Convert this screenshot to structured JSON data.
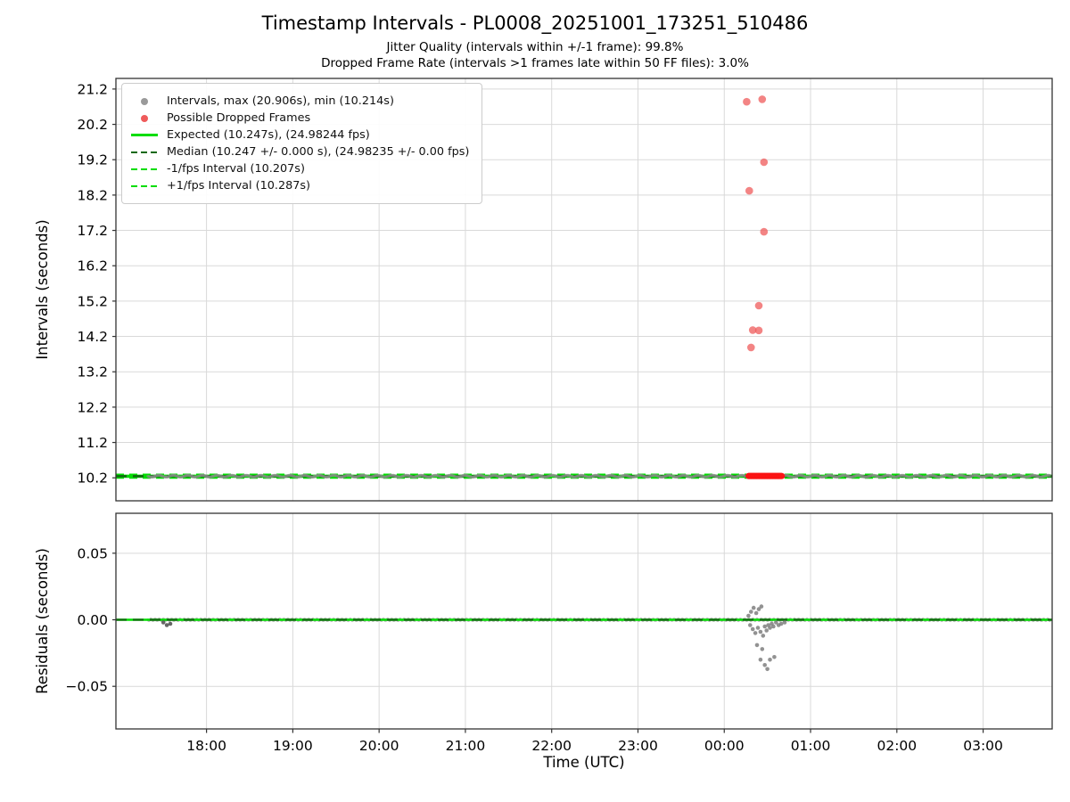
{
  "header": {
    "title": "Timestamp Intervals - PL0008_20251001_173251_510486",
    "subtitle_jitter": "Jitter Quality (intervals within +/-1 frame): 99.8%",
    "subtitle_dropped": "Dropped Frame Rate (intervals >1 frames late within 50 FF files): 3.0%"
  },
  "legend": {
    "items": [
      {
        "label": "Intervals, max (20.906s), min (10.214s)",
        "marker": "dot",
        "color": "#9a9a9a"
      },
      {
        "label": "Possible Dropped Frames",
        "marker": "dot",
        "color": "#ef5b5b"
      },
      {
        "label": "Expected (10.247s), (24.98244 fps)",
        "marker": "line-solid",
        "color": "#00dd00"
      },
      {
        "label": "Median (10.247 +/- 0.000 s), (24.98235 +/- 0.00 fps)",
        "marker": "line-dashed",
        "color": "#10680f"
      },
      {
        "label": "-1/fps Interval (10.207s)",
        "marker": "line-dashed",
        "color": "#00dd00"
      },
      {
        "label": "+1/fps Interval (10.287s)",
        "marker": "line-dashed",
        "color": "#00dd00"
      }
    ]
  },
  "chart_data": {
    "type": "scatter",
    "title": "Timestamp Intervals - PL0008_20251001_173251_510486",
    "x_label": "Time (UTC)",
    "x_tick_labels": [
      "18:00",
      "19:00",
      "20:00",
      "21:00",
      "22:00",
      "23:00",
      "00:00",
      "01:00",
      "02:00",
      "03:00"
    ],
    "x_tick_hours": [
      18,
      19,
      20,
      21,
      22,
      23,
      24,
      25,
      26,
      27
    ],
    "x_range_hours": [
      16.95,
      27.8
    ],
    "grid": true,
    "colors": {
      "expected": "#00dd00",
      "median": "#10680f",
      "fps_lines": "#00dd00",
      "dropped": "#ef5b5b",
      "dropped_cluster": "#fb1414",
      "points": "#8a8a8a",
      "grid": "#d9d9d9",
      "axis": "#333333"
    },
    "stats": {
      "jitter_quality_pct": 99.8,
      "dropped_frame_rate_pct": 3.0,
      "ff_files": 50
    },
    "top_plot": {
      "y_label": "Intervals (seconds)",
      "y_tick_values": [
        10.2,
        11.2,
        12.2,
        13.2,
        14.2,
        15.2,
        16.2,
        17.2,
        18.2,
        19.2,
        20.2,
        21.2
      ],
      "y_tick_labels": [
        "10.2",
        "11.2",
        "12.2",
        "13.2",
        "14.2",
        "15.2",
        "16.2",
        "17.2",
        "18.2",
        "19.2",
        "20.2",
        "21.2"
      ],
      "y_range": [
        9.55,
        21.5
      ],
      "expected_interval_s": 10.247,
      "expected_fps": 24.98244,
      "median_interval_s": 10.247,
      "median_fps": 24.98235,
      "minus_one_fps_interval_s": 10.207,
      "plus_one_fps_interval_s": 10.287,
      "max_interval_s": 20.906,
      "min_interval_s": 10.214,
      "baseline_series": {
        "x_start_hour": 17.32,
        "x_end_hour": 27.78,
        "value_s": 10.247,
        "interval_step_s": 10.247
      },
      "dropped_cluster": {
        "x_start_hour": 24.28,
        "x_end_hour": 24.67,
        "value_s": 10.25
      },
      "dropped_outliers": [
        [
          24.26,
          20.84
        ],
        [
          24.44,
          20.91
        ],
        [
          24.46,
          19.13
        ],
        [
          24.29,
          18.32
        ],
        [
          24.46,
          17.16
        ],
        [
          24.4,
          15.07
        ],
        [
          24.33,
          14.38
        ],
        [
          24.4,
          14.37
        ],
        [
          24.31,
          13.89
        ]
      ]
    },
    "bottom_plot": {
      "y_label": "Residuals (seconds)",
      "y_tick_values": [
        -0.05,
        0.0,
        0.05
      ],
      "y_tick_labels": [
        "−0.05",
        "0.00",
        "0.05"
      ],
      "y_range": [
        -0.082,
        0.08
      ],
      "zero_line_value": 0.0,
      "early_scatter": [
        [
          17.5,
          -0.002
        ],
        [
          17.54,
          -0.004
        ],
        [
          17.58,
          -0.003
        ]
      ],
      "residual_scatter": [
        [
          24.28,
          0.003
        ],
        [
          24.31,
          0.006
        ],
        [
          24.34,
          0.009
        ],
        [
          24.37,
          0.005
        ],
        [
          24.4,
          0.008
        ],
        [
          24.43,
          0.01
        ],
        [
          24.3,
          -0.004
        ],
        [
          24.33,
          -0.007
        ],
        [
          24.36,
          -0.01
        ],
        [
          24.39,
          -0.006
        ],
        [
          24.42,
          -0.009
        ],
        [
          24.45,
          -0.012
        ],
        [
          24.47,
          -0.005
        ],
        [
          24.49,
          -0.008
        ],
        [
          24.51,
          -0.004
        ],
        [
          24.53,
          -0.006
        ],
        [
          24.55,
          -0.003
        ],
        [
          24.57,
          -0.005
        ],
        [
          24.6,
          -0.002
        ],
        [
          24.63,
          -0.004
        ],
        [
          24.66,
          -0.003
        ],
        [
          24.7,
          -0.002
        ],
        [
          24.38,
          -0.019
        ],
        [
          24.44,
          -0.022
        ],
        [
          24.42,
          -0.03
        ],
        [
          24.47,
          -0.034
        ],
        [
          24.53,
          -0.03
        ],
        [
          24.58,
          -0.028
        ],
        [
          24.5,
          -0.037
        ]
      ]
    }
  }
}
